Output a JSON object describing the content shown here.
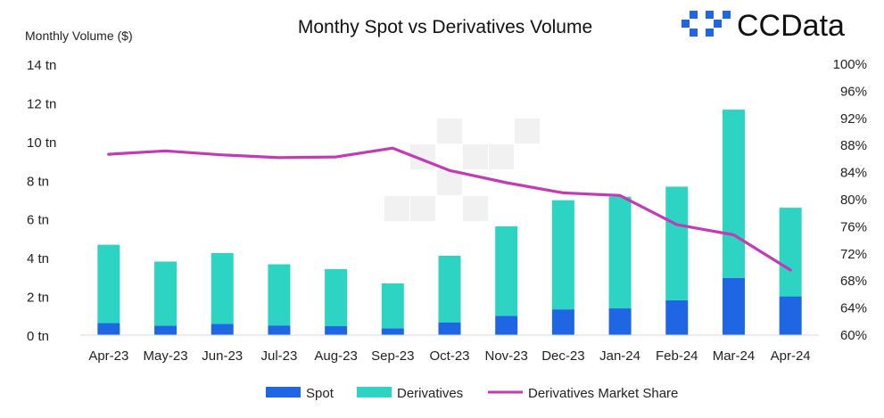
{
  "chart_data": {
    "type": "bar",
    "title": "Monthy Spot vs Derivatives Volume",
    "ylabel": "Monthly Volume ($)",
    "brand": "CCData",
    "categories": [
      "Apr-23",
      "May-23",
      "Jun-23",
      "Jul-23",
      "Aug-23",
      "Sep-23",
      "Oct-23",
      "Nov-23",
      "Dec-23",
      "Jan-24",
      "Feb-24",
      "Mar-24",
      "Apr-24"
    ],
    "series": [
      {
        "name": "Spot",
        "kind": "bar",
        "stack": "volume",
        "color": "#1f66e5",
        "values": [
          0.62,
          0.49,
          0.58,
          0.5,
          0.46,
          0.35,
          0.66,
          1.0,
          1.33,
          1.38,
          1.8,
          2.95,
          2.0
        ]
      },
      {
        "name": "Derivatives",
        "kind": "bar",
        "stack": "volume",
        "color": "#2dd4c4",
        "values": [
          4.05,
          3.31,
          3.66,
          3.16,
          2.95,
          2.32,
          3.44,
          4.62,
          5.64,
          5.77,
          5.87,
          8.7,
          4.58
        ]
      },
      {
        "name": "Derivatives Market Share",
        "kind": "line",
        "axis": "right",
        "color": "#c23bb4",
        "values": [
          86.7,
          87.2,
          86.6,
          86.2,
          86.3,
          87.6,
          84.3,
          82.5,
          81.0,
          80.6,
          76.3,
          74.8,
          69.6
        ]
      }
    ],
    "ylim": [
      0,
      14
    ],
    "y_ticks": [
      0,
      2,
      4,
      6,
      8,
      10,
      12,
      14
    ],
    "y_tick_labels": [
      "0 tn",
      "2 tn",
      "4 tn",
      "6 tn",
      "8 tn",
      "10 tn",
      "12 tn",
      "14 tn"
    ],
    "y2lim": [
      60,
      100
    ],
    "y2_ticks": [
      60,
      64,
      68,
      72,
      76,
      80,
      84,
      88,
      92,
      96,
      100
    ],
    "y2_tick_labels": [
      "60%",
      "64%",
      "68%",
      "72%",
      "76%",
      "80%",
      "84%",
      "88%",
      "92%",
      "96%",
      "100%"
    ],
    "legend": [
      "Spot",
      "Derivatives",
      "Derivatives Market Share"
    ],
    "legend_position": "bottom",
    "grid": false
  }
}
